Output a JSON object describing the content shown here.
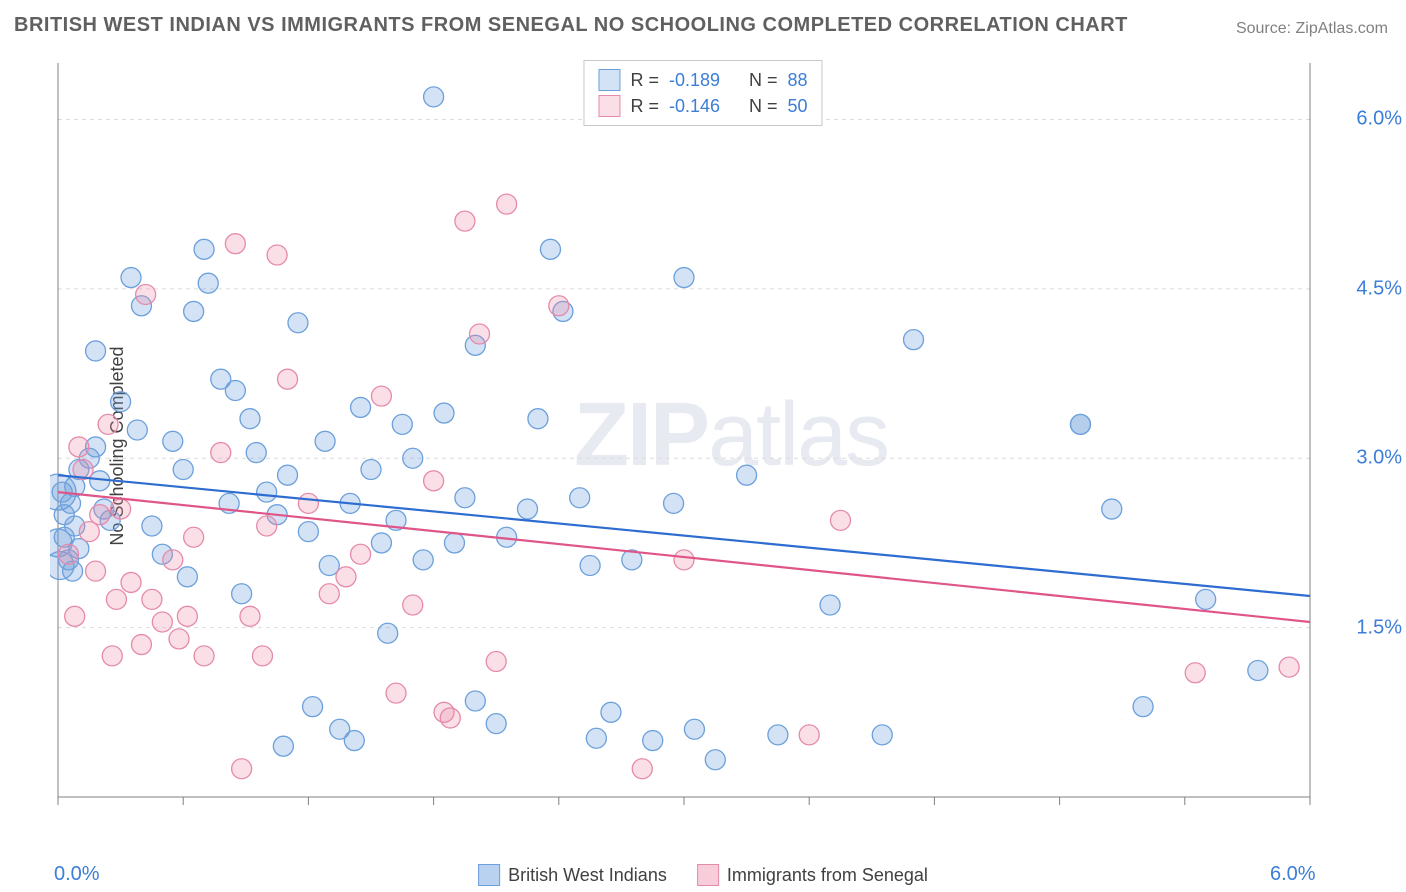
{
  "title": "BRITISH WEST INDIAN VS IMMIGRANTS FROM SENEGAL NO SCHOOLING COMPLETED CORRELATION CHART",
  "source_label": "Source:",
  "source_name": "ZipAtlas.com",
  "ylabel": "No Schooling Completed",
  "watermark_bold": "ZIP",
  "watermark_rest": "atlas",
  "chart": {
    "type": "scatter",
    "background_color": "#ffffff",
    "grid_color": "#dcdcdc",
    "axis_color": "#808080",
    "xlim": [
      0.0,
      6.0
    ],
    "ylim": [
      0.0,
      6.5
    ],
    "xtick_positions": [
      0.0,
      0.6,
      1.2,
      1.8,
      2.4,
      3.0,
      3.6,
      4.2,
      4.8,
      5.4,
      6.0
    ],
    "ytick_positions": [
      1.5,
      3.0,
      4.5,
      6.0
    ],
    "ytick_labels": [
      "1.5%",
      "3.0%",
      "4.5%",
      "6.0%"
    ],
    "xaxis_label_left": "0.0%",
    "xaxis_label_right": "6.0%",
    "tick_label_color": "#3b7dd8",
    "marker_radius": 10,
    "marker_stroke_width": 1.3,
    "trend_line_width": 2.2,
    "series": [
      {
        "name": "British West Indians",
        "fill": "rgba(108,160,220,0.30)",
        "stroke": "#6ca0dc",
        "trend_stroke": "#2d6cd0",
        "r_value": "-0.189",
        "n_value": "88",
        "trend": {
          "y_at_x0": 2.85,
          "y_at_x6": 1.78
        },
        "data": [
          [
            0.02,
            2.7
          ],
          [
            0.03,
            2.5
          ],
          [
            0.03,
            2.3
          ],
          [
            0.05,
            2.1
          ],
          [
            0.06,
            2.6
          ],
          [
            0.07,
            2.0
          ],
          [
            0.08,
            2.4
          ],
          [
            0.08,
            2.75
          ],
          [
            0.1,
            2.2
          ],
          [
            0.1,
            2.9
          ],
          [
            0.15,
            3.0
          ],
          [
            0.18,
            3.1
          ],
          [
            0.18,
            3.95
          ],
          [
            0.2,
            2.8
          ],
          [
            0.22,
            2.55
          ],
          [
            0.25,
            2.45
          ],
          [
            0.3,
            3.5
          ],
          [
            0.35,
            4.6
          ],
          [
            0.38,
            3.25
          ],
          [
            0.4,
            4.35
          ],
          [
            0.45,
            2.4
          ],
          [
            0.5,
            2.15
          ],
          [
            0.55,
            3.15
          ],
          [
            0.6,
            2.9
          ],
          [
            0.62,
            1.95
          ],
          [
            0.65,
            4.3
          ],
          [
            0.7,
            4.85
          ],
          [
            0.72,
            4.55
          ],
          [
            0.78,
            3.7
          ],
          [
            0.82,
            2.6
          ],
          [
            0.85,
            3.6
          ],
          [
            0.88,
            1.8
          ],
          [
            0.92,
            3.35
          ],
          [
            0.95,
            3.05
          ],
          [
            1.0,
            2.7
          ],
          [
            1.05,
            2.5
          ],
          [
            1.08,
            0.45
          ],
          [
            1.1,
            2.85
          ],
          [
            1.15,
            4.2
          ],
          [
            1.2,
            2.35
          ],
          [
            1.22,
            0.8
          ],
          [
            1.28,
            3.15
          ],
          [
            1.3,
            2.05
          ],
          [
            1.35,
            0.6
          ],
          [
            1.4,
            2.6
          ],
          [
            1.42,
            0.5
          ],
          [
            1.45,
            3.45
          ],
          [
            1.5,
            2.9
          ],
          [
            1.55,
            2.25
          ],
          [
            1.58,
            1.45
          ],
          [
            1.62,
            2.45
          ],
          [
            1.65,
            3.3
          ],
          [
            1.7,
            3.0
          ],
          [
            1.75,
            2.1
          ],
          [
            1.8,
            6.2
          ],
          [
            1.85,
            3.4
          ],
          [
            1.9,
            2.25
          ],
          [
            1.95,
            2.65
          ],
          [
            2.0,
            0.85
          ],
          [
            2.0,
            4.0
          ],
          [
            2.1,
            0.65
          ],
          [
            2.15,
            2.3
          ],
          [
            2.25,
            2.55
          ],
          [
            2.3,
            3.35
          ],
          [
            2.36,
            4.85
          ],
          [
            2.42,
            4.3
          ],
          [
            2.5,
            2.65
          ],
          [
            2.55,
            2.05
          ],
          [
            2.58,
            0.52
          ],
          [
            2.65,
            0.75
          ],
          [
            2.75,
            2.1
          ],
          [
            2.85,
            0.5
          ],
          [
            2.95,
            2.6
          ],
          [
            3.0,
            4.6
          ],
          [
            3.05,
            0.6
          ],
          [
            3.15,
            0.33
          ],
          [
            3.3,
            2.85
          ],
          [
            3.45,
            0.55
          ],
          [
            3.7,
            1.7
          ],
          [
            3.95,
            0.55
          ],
          [
            4.1,
            4.05
          ],
          [
            4.9,
            3.3
          ],
          [
            4.9,
            3.3
          ],
          [
            5.05,
            2.55
          ],
          [
            5.2,
            0.8
          ],
          [
            5.5,
            1.75
          ],
          [
            5.75,
            1.12
          ]
        ]
      },
      {
        "name": "Immigrants from Senegal",
        "fill": "rgba(236,140,170,0.28)",
        "stroke": "#e68aab",
        "trend_stroke": "#e05588",
        "r_value": "-0.146",
        "n_value": "50",
        "trend": {
          "y_at_x0": 2.7,
          "y_at_x6": 1.55
        },
        "data": [
          [
            0.05,
            2.15
          ],
          [
            0.08,
            1.6
          ],
          [
            0.1,
            3.1
          ],
          [
            0.12,
            2.9
          ],
          [
            0.15,
            2.35
          ],
          [
            0.18,
            2.0
          ],
          [
            0.2,
            2.5
          ],
          [
            0.24,
            3.3
          ],
          [
            0.26,
            1.25
          ],
          [
            0.28,
            1.75
          ],
          [
            0.3,
            2.55
          ],
          [
            0.35,
            1.9
          ],
          [
            0.4,
            1.35
          ],
          [
            0.42,
            4.45
          ],
          [
            0.45,
            1.75
          ],
          [
            0.5,
            1.55
          ],
          [
            0.55,
            2.1
          ],
          [
            0.58,
            1.4
          ],
          [
            0.62,
            1.6
          ],
          [
            0.65,
            2.3
          ],
          [
            0.7,
            1.25
          ],
          [
            0.78,
            3.05
          ],
          [
            0.85,
            4.9
          ],
          [
            0.88,
            0.25
          ],
          [
            0.92,
            1.6
          ],
          [
            0.98,
            1.25
          ],
          [
            1.0,
            2.4
          ],
          [
            1.05,
            4.8
          ],
          [
            1.1,
            3.7
          ],
          [
            1.2,
            2.6
          ],
          [
            1.3,
            1.8
          ],
          [
            1.38,
            1.95
          ],
          [
            1.45,
            2.15
          ],
          [
            1.55,
            3.55
          ],
          [
            1.62,
            0.92
          ],
          [
            1.7,
            1.7
          ],
          [
            1.8,
            2.8
          ],
          [
            1.85,
            0.75
          ],
          [
            1.88,
            0.7
          ],
          [
            1.95,
            5.1
          ],
          [
            2.02,
            4.1
          ],
          [
            2.1,
            1.2
          ],
          [
            2.15,
            5.25
          ],
          [
            2.4,
            4.35
          ],
          [
            2.8,
            0.25
          ],
          [
            3.0,
            2.1
          ],
          [
            3.6,
            0.55
          ],
          [
            3.75,
            2.45
          ],
          [
            5.9,
            1.15
          ],
          [
            5.45,
            1.1
          ]
        ]
      }
    ],
    "edge_points_blue": [
      [
        0.0,
        2.7,
        18
      ],
      [
        0.0,
        2.25,
        14
      ],
      [
        0.01,
        2.05,
        14
      ]
    ],
    "stat_box": {
      "r_label": "R =",
      "n_label": "N =",
      "text_color": "#404040",
      "value_color": "#3b7dd8"
    },
    "legend_bottom": [
      {
        "label": "British West Indians",
        "fill": "#b8d2f0",
        "stroke": "#6ca0dc"
      },
      {
        "label": "Immigrants from Senegal",
        "fill": "#f6cdd9",
        "stroke": "#e68aab"
      }
    ]
  }
}
